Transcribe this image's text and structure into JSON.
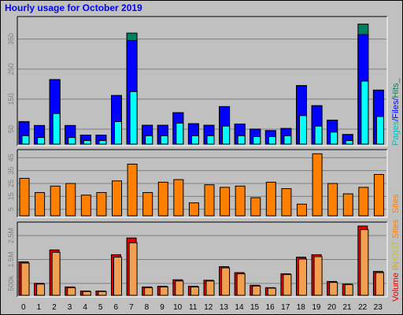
{
  "title": "Hourly usage for October 2019",
  "colors": {
    "background": "#c0c0c0",
    "hits": "#00805c",
    "files": "#0000ff",
    "pages": "#00ffff",
    "sites": "#ff8000",
    "volume": "#e00000",
    "kbin": "#f0a050",
    "kbout": "#c8c800",
    "title": "#0000ff"
  },
  "legends": {
    "top": [
      "Pages",
      "/",
      "Files",
      "/",
      "Hits",
      "_"
    ],
    "middle": [
      "Sites"
    ],
    "bottom": [
      "Volume",
      "  ",
      "IN",
      "/",
      "OUT",
      " ",
      "Sites"
    ]
  },
  "chart_data": [
    {
      "type": "bar",
      "panel": "top",
      "categories": [
        "0",
        "1",
        "2",
        "3",
        "4",
        "5",
        "6",
        "7",
        "8",
        "9",
        "10",
        "11",
        "12",
        "13",
        "14",
        "15",
        "16",
        "17",
        "18",
        "19",
        "20",
        "21",
        "22",
        "23"
      ],
      "yticks": [
        50,
        150,
        250,
        350
      ],
      "ylim": [
        0,
        420
      ],
      "series": [
        {
          "name": "Hits",
          "values": [
            75,
            62,
            215,
            62,
            30,
            30,
            162,
            370,
            63,
            63,
            105,
            68,
            63,
            125,
            67,
            50,
            45,
            52,
            195,
            128,
            80,
            32,
            400,
            180
          ]
        },
        {
          "name": "Files",
          "values": [
            75,
            62,
            215,
            62,
            30,
            30,
            162,
            345,
            63,
            63,
            105,
            68,
            63,
            125,
            67,
            50,
            45,
            52,
            195,
            128,
            80,
            32,
            365,
            180
          ]
        },
        {
          "name": "Pages",
          "values": [
            28,
            22,
            102,
            22,
            12,
            12,
            75,
            175,
            28,
            28,
            70,
            28,
            28,
            60,
            28,
            25,
            25,
            28,
            95,
            60,
            40,
            12,
            210,
            92
          ]
        }
      ]
    },
    {
      "type": "bar",
      "panel": "middle",
      "categories": [
        "0",
        "1",
        "2",
        "3",
        "4",
        "5",
        "6",
        "7",
        "8",
        "9",
        "10",
        "11",
        "12",
        "13",
        "14",
        "15",
        "16",
        "17",
        "18",
        "19",
        "20",
        "21",
        "22",
        "23"
      ],
      "yticks": [
        5,
        15,
        25,
        35,
        45
      ],
      "ylim": [
        0,
        50
      ],
      "series": [
        {
          "name": "Sites",
          "values": [
            29,
            18,
            23,
            25,
            16,
            18,
            27,
            40,
            18,
            26,
            28,
            10,
            24,
            22,
            23,
            14,
            26,
            21,
            9,
            48,
            25,
            17,
            22,
            32
          ]
        }
      ]
    },
    {
      "type": "bar",
      "panel": "bottom",
      "categories": [
        "0",
        "1",
        "2",
        "3",
        "4",
        "5",
        "6",
        "7",
        "8",
        "9",
        "10",
        "11",
        "12",
        "13",
        "14",
        "15",
        "16",
        "17",
        "18",
        "19",
        "20",
        "21",
        "22",
        "23"
      ],
      "yticks": [
        "500k",
        "1.5M",
        "2.5M"
      ],
      "ytick_values": [
        500,
        1500,
        2500
      ],
      "ylim": [
        0,
        3000
      ],
      "series": [
        {
          "name": "Volume",
          "values": [
            1400,
            500,
            1900,
            350,
            180,
            180,
            1700,
            2400,
            350,
            380,
            650,
            380,
            630,
            1200,
            950,
            420,
            320,
            900,
            1600,
            1700,
            580,
            470,
            2900,
            1000
          ]
        },
        {
          "name": "IN",
          "values": [
            1350,
            470,
            1800,
            320,
            160,
            160,
            1600,
            2200,
            320,
            350,
            600,
            350,
            600,
            1150,
            900,
            390,
            300,
            870,
            1520,
            1620,
            540,
            450,
            2750,
            950
          ]
        }
      ]
    }
  ]
}
